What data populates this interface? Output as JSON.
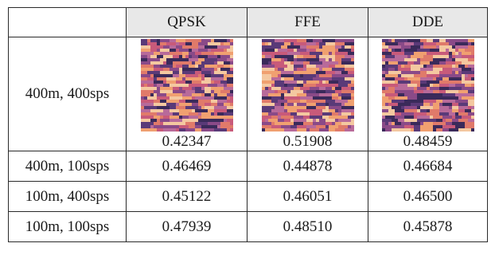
{
  "table": {
    "headers": [
      "",
      "QPSK",
      "FFE",
      "DDE"
    ],
    "rows": [
      {
        "label": "400m, 400sps",
        "values": [
          "0.42347",
          "0.51908",
          "0.48459"
        ],
        "has_images": true
      },
      {
        "label": "400m, 100sps",
        "values": [
          "0.46469",
          "0.44878",
          "0.46684"
        ]
      },
      {
        "label": "100m, 400sps",
        "values": [
          "0.45122",
          "0.46051",
          "0.46500"
        ]
      },
      {
        "label": "100m, 100sps",
        "values": [
          "0.47939",
          "0.48510",
          "0.45878"
        ]
      }
    ]
  },
  "colors": {
    "header_bg": "#e8e8e8",
    "border": "#2a2a2a",
    "palette": [
      "#f0a070",
      "#e07a6a",
      "#c85a7a",
      "#8a4a88",
      "#5a3a78",
      "#f4c8a0",
      "#b86a9a",
      "#3a2a5a"
    ]
  }
}
